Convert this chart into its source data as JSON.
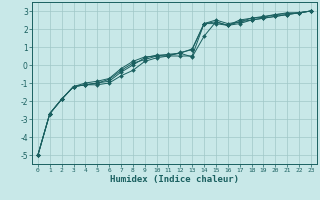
{
  "xlabel": "Humidex (Indice chaleur)",
  "bg_color": "#c8e8e8",
  "line_color": "#1a6060",
  "grid_color": "#a0c8c8",
  "xlim": [
    -0.5,
    23.5
  ],
  "ylim": [
    -5.5,
    3.5
  ],
  "yticks": [
    -5,
    -4,
    -3,
    -2,
    -1,
    0,
    1,
    2,
    3
  ],
  "xticks": [
    0,
    1,
    2,
    3,
    4,
    5,
    6,
    7,
    8,
    9,
    10,
    11,
    12,
    13,
    14,
    15,
    16,
    17,
    18,
    19,
    20,
    21,
    22,
    23
  ],
  "x": [
    0,
    1,
    2,
    3,
    4,
    5,
    6,
    7,
    8,
    9,
    10,
    11,
    12,
    13,
    14,
    15,
    16,
    17,
    18,
    19,
    20,
    21,
    22,
    23
  ],
  "series": [
    [
      -5.0,
      -2.7,
      -1.9,
      -1.2,
      -1.1,
      -1.1,
      -1.0,
      -0.6,
      -0.3,
      0.2,
      0.4,
      0.5,
      0.5,
      0.5,
      2.3,
      2.3,
      2.2,
      2.5,
      2.6,
      2.7,
      2.8,
      2.85,
      2.9,
      3.0
    ],
    [
      -5.0,
      -2.7,
      -1.9,
      -1.2,
      -1.1,
      -1.0,
      -0.9,
      -0.4,
      0.0,
      0.4,
      0.55,
      0.55,
      0.65,
      0.45,
      1.6,
      2.4,
      2.2,
      2.3,
      2.5,
      2.6,
      2.7,
      2.8,
      2.9,
      3.0
    ],
    [
      -5.0,
      -2.7,
      -1.9,
      -1.2,
      -1.1,
      -1.0,
      -0.8,
      -0.3,
      0.1,
      0.3,
      0.5,
      0.6,
      0.65,
      0.9,
      2.3,
      2.5,
      2.3,
      2.4,
      2.6,
      2.65,
      2.8,
      2.9,
      2.9,
      3.0
    ],
    [
      -5.0,
      -2.7,
      -1.9,
      -1.2,
      -1.0,
      -0.9,
      -0.75,
      -0.2,
      0.2,
      0.45,
      0.5,
      0.5,
      0.7,
      0.85,
      2.3,
      2.4,
      2.2,
      2.4,
      2.5,
      2.6,
      2.7,
      2.8,
      2.9,
      3.0
    ]
  ]
}
